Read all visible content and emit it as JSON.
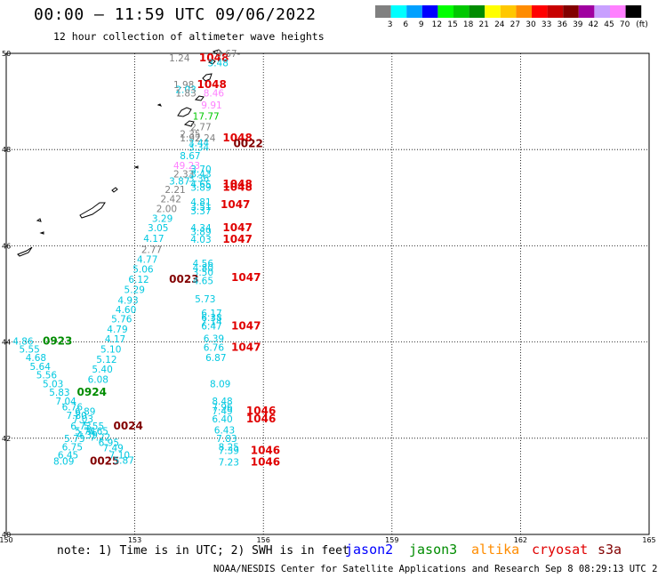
{
  "header": {
    "title": "00:00 – 11:59 UTC 09/06/2022",
    "subtitle": "12 hour collection of altimeter wave heights"
  },
  "legend": {
    "unit_label": "(ft)",
    "items": [
      {
        "label": "3",
        "color": "#808080"
      },
      {
        "label": "6",
        "color": "#00ffff"
      },
      {
        "label": "9",
        "color": "#00a0ff"
      },
      {
        "label": "12",
        "color": "#0000ff"
      },
      {
        "label": "15",
        "color": "#00ff00"
      },
      {
        "label": "18",
        "color": "#00c800"
      },
      {
        "label": "21",
        "color": "#008c00"
      },
      {
        "label": "24",
        "color": "#ffff00"
      },
      {
        "label": "27",
        "color": "#ffc800"
      },
      {
        "label": "30",
        "color": "#ff8c00"
      },
      {
        "label": "33",
        "color": "#ff0000"
      },
      {
        "label": "36",
        "color": "#c80000"
      },
      {
        "label": "39",
        "color": "#820000"
      },
      {
        "label": "42",
        "color": "#a000a0"
      },
      {
        "label": "45",
        "color": "#c8a0ff"
      },
      {
        "label": "70",
        "color": "#ff80ff"
      },
      {
        "label": "",
        "color": "#000000"
      }
    ]
  },
  "map": {
    "lon_ticks": [
      "150",
      "153",
      "156",
      "159",
      "162",
      "165"
    ],
    "lat_ticks": [
      "50",
      "48",
      "46",
      "44",
      "42",
      "40"
    ],
    "lon_range": [
      150,
      165
    ],
    "lat_range": [
      40,
      50
    ],
    "grid": "dotted"
  },
  "annotations": [
    {
      "text": "1.24",
      "lon": 153.8,
      "lat": 49.83,
      "color": "#808080"
    },
    {
      "text": "1048",
      "lon": 154.5,
      "lat": 49.83,
      "color": "#e00000"
    },
    {
      "text": "9.67-",
      "lon": 154.9,
      "lat": 49.93,
      "color": "#808080"
    },
    {
      "text": "3.48",
      "lon": 154.7,
      "lat": 49.73,
      "color": "#00c8e0"
    },
    {
      "text": "1.98",
      "lon": 153.9,
      "lat": 49.28,
      "color": "#808080"
    },
    {
      "text": "1048",
      "lon": 154.45,
      "lat": 49.28,
      "color": "#e00000"
    },
    {
      "text": "2.03",
      "lon": 153.95,
      "lat": 49.18,
      "color": "#00c8e0"
    },
    {
      "text": "1.83",
      "lon": 153.95,
      "lat": 49.1,
      "color": "#808080"
    },
    {
      "text": "8.46",
      "lon": 154.6,
      "lat": 49.1,
      "color": "#ff80ff"
    },
    {
      "text": "9.91",
      "lon": 154.55,
      "lat": 48.85,
      "color": "#ff80ff"
    },
    {
      "text": "17.77",
      "lon": 154.35,
      "lat": 48.62,
      "color": "#00c800"
    },
    {
      "text": "2.77",
      "lon": 154.3,
      "lat": 48.4,
      "color": "#808080"
    },
    {
      "text": "2.35",
      "lon": 154.05,
      "lat": 48.25,
      "color": "#808080"
    },
    {
      "text": "1.92",
      "lon": 154.05,
      "lat": 48.17,
      "color": "#808080"
    },
    {
      "text": "2.24",
      "lon": 154.4,
      "lat": 48.17,
      "color": "#808080"
    },
    {
      "text": "1048",
      "lon": 155.05,
      "lat": 48.17,
      "color": "#e00000"
    },
    {
      "text": "3.44",
      "lon": 154.25,
      "lat": 48.07,
      "color": "#00c8e0"
    },
    {
      "text": "3.34",
      "lon": 154.25,
      "lat": 47.98,
      "color": "#00c8e0"
    },
    {
      "text": "0022",
      "lon": 155.3,
      "lat": 48.05,
      "color": "#820000"
    },
    {
      "text": "8.67",
      "lon": 154.05,
      "lat": 47.8,
      "color": "#00c8e0"
    },
    {
      "text": "49.23",
      "lon": 153.9,
      "lat": 47.6,
      "color": "#ff80ff"
    },
    {
      "text": "3.70",
      "lon": 154.3,
      "lat": 47.52,
      "color": "#00c8e0"
    },
    {
      "text": "2.33",
      "lon": 153.9,
      "lat": 47.42,
      "color": "#808080"
    },
    {
      "text": "3.43",
      "lon": 154.3,
      "lat": 47.42,
      "color": "#00c8e0"
    },
    {
      "text": "3.36",
      "lon": 154.25,
      "lat": 47.33,
      "color": "#00c8e0"
    },
    {
      "text": "3.87",
      "lon": 153.8,
      "lat": 47.27,
      "color": "#00c8e0"
    },
    {
      "text": "4.65",
      "lon": 154.3,
      "lat": 47.21,
      "color": "#00c8e0"
    },
    {
      "text": "3.89",
      "lon": 154.3,
      "lat": 47.14,
      "color": "#00c8e0"
    },
    {
      "text": "1048",
      "lon": 155.05,
      "lat": 47.21,
      "color": "#e00000"
    },
    {
      "text": "1048",
      "lon": 155.05,
      "lat": 47.14,
      "color": "#e00000"
    },
    {
      "text": "2.21",
      "lon": 153.7,
      "lat": 47.1,
      "color": "#808080"
    },
    {
      "text": "2.42",
      "lon": 153.6,
      "lat": 46.9,
      "color": "#808080"
    },
    {
      "text": "4.81",
      "lon": 154.3,
      "lat": 46.84,
      "color": "#00c8e0"
    },
    {
      "text": "3.51",
      "lon": 154.3,
      "lat": 46.75,
      "color": "#00c8e0"
    },
    {
      "text": "1047",
      "lon": 155.0,
      "lat": 46.78,
      "color": "#e00000"
    },
    {
      "text": "2.00",
      "lon": 153.5,
      "lat": 46.7,
      "color": "#808080"
    },
    {
      "text": "3.37",
      "lon": 154.3,
      "lat": 46.65,
      "color": "#00c8e0"
    },
    {
      "text": "3.29",
      "lon": 153.4,
      "lat": 46.5,
      "color": "#00c8e0"
    },
    {
      "text": "3.05",
      "lon": 153.3,
      "lat": 46.3,
      "color": "#00c8e0"
    },
    {
      "text": "4.34",
      "lon": 154.3,
      "lat": 46.3,
      "color": "#00c8e0"
    },
    {
      "text": "3.89",
      "lon": 154.3,
      "lat": 46.22,
      "color": "#00c8e0"
    },
    {
      "text": "1047",
      "lon": 155.05,
      "lat": 46.3,
      "color": "#e00000"
    },
    {
      "text": "4.17",
      "lon": 153.2,
      "lat": 46.08,
      "color": "#00c8e0"
    },
    {
      "text": "4.03",
      "lon": 154.3,
      "lat": 46.06,
      "color": "#00c8e0"
    },
    {
      "text": "1047",
      "lon": 155.05,
      "lat": 46.06,
      "color": "#e00000"
    },
    {
      "text": "2.77",
      "lon": 153.15,
      "lat": 45.85,
      "color": "#808080"
    },
    {
      "text": "4.77",
      "lon": 153.05,
      "lat": 45.65,
      "color": "#00c8e0"
    },
    {
      "text": "4.56",
      "lon": 154.35,
      "lat": 45.56,
      "color": "#00c8e0"
    },
    {
      "text": "4.80",
      "lon": 154.35,
      "lat": 45.47,
      "color": "#00c8e0"
    },
    {
      "text": "5.06",
      "lon": 152.95,
      "lat": 45.44,
      "color": "#00c8e0"
    },
    {
      "text": "3.50",
      "lon": 154.35,
      "lat": 45.38,
      "color": "#00c8e0"
    },
    {
      "text": "6.12",
      "lon": 152.85,
      "lat": 45.23,
      "color": "#00c8e0"
    },
    {
      "text": "0023",
      "lon": 153.8,
      "lat": 45.23,
      "color": "#820000"
    },
    {
      "text": "4.65",
      "lon": 154.35,
      "lat": 45.2,
      "color": "#00c8e0"
    },
    {
      "text": "1047",
      "lon": 155.25,
      "lat": 45.27,
      "color": "#e00000"
    },
    {
      "text": "5.29",
      "lon": 152.75,
      "lat": 45.02,
      "color": "#00c8e0"
    },
    {
      "text": "5.73",
      "lon": 154.4,
      "lat": 44.82,
      "color": "#00c8e0"
    },
    {
      "text": "4.93",
      "lon": 152.6,
      "lat": 44.8,
      "color": "#00c8e0"
    },
    {
      "text": "4.60",
      "lon": 152.55,
      "lat": 44.6,
      "color": "#00c8e0"
    },
    {
      "text": "6.17",
      "lon": 154.55,
      "lat": 44.53,
      "color": "#00c8e0"
    },
    {
      "text": "5.76",
      "lon": 152.45,
      "lat": 44.41,
      "color": "#00c8e0"
    },
    {
      "text": "6.38",
      "lon": 154.55,
      "lat": 44.44,
      "color": "#00c8e0"
    },
    {
      "text": "7.14",
      "lon": 154.55,
      "lat": 44.35,
      "color": "#00c8e0"
    },
    {
      "text": "4.79",
      "lon": 152.35,
      "lat": 44.2,
      "color": "#00c8e0"
    },
    {
      "text": "6.47",
      "lon": 154.55,
      "lat": 44.26,
      "color": "#00c8e0"
    },
    {
      "text": "1047",
      "lon": 155.25,
      "lat": 44.26,
      "color": "#e00000"
    },
    {
      "text": "4.17",
      "lon": 152.3,
      "lat": 43.99,
      "color": "#00c8e0"
    },
    {
      "text": "6.39",
      "lon": 154.6,
      "lat": 44.0,
      "color": "#00c8e0"
    },
    {
      "text": "4.86",
      "lon": 150.15,
      "lat": 43.95,
      "color": "#00c8e0"
    },
    {
      "text": "0923",
      "lon": 150.85,
      "lat": 43.95,
      "color": "#008c00"
    },
    {
      "text": "5.55",
      "lon": 150.3,
      "lat": 43.78,
      "color": "#00c8e0"
    },
    {
      "text": "5.10",
      "lon": 152.2,
      "lat": 43.78,
      "color": "#00c8e0"
    },
    {
      "text": "6.76",
      "lon": 154.6,
      "lat": 43.82,
      "color": "#00c8e0"
    },
    {
      "text": "1047",
      "lon": 155.25,
      "lat": 43.82,
      "color": "#e00000"
    },
    {
      "text": "4.68",
      "lon": 150.45,
      "lat": 43.6,
      "color": "#00c8e0"
    },
    {
      "text": "5.12",
      "lon": 152.1,
      "lat": 43.57,
      "color": "#00c8e0"
    },
    {
      "text": "6.87",
      "lon": 154.65,
      "lat": 43.6,
      "color": "#00c8e0"
    },
    {
      "text": "5.64",
      "lon": 150.55,
      "lat": 43.42,
      "color": "#00c8e0"
    },
    {
      "text": "5.40",
      "lon": 152.0,
      "lat": 43.36,
      "color": "#00c8e0"
    },
    {
      "text": "5.56",
      "lon": 150.7,
      "lat": 43.24,
      "color": "#00c8e0"
    },
    {
      "text": "6.08",
      "lon": 151.9,
      "lat": 43.15,
      "color": "#00c8e0"
    },
    {
      "text": "5.03",
      "lon": 150.85,
      "lat": 43.06,
      "color": "#00c8e0"
    },
    {
      "text": "8.09",
      "lon": 154.75,
      "lat": 43.06,
      "color": "#00c8e0"
    },
    {
      "text": "5.83",
      "lon": 151.0,
      "lat": 42.88,
      "color": "#00c8e0"
    },
    {
      "text": "0924",
      "lon": 151.65,
      "lat": 42.88,
      "color": "#008c00"
    },
    {
      "text": "7.04",
      "lon": 151.15,
      "lat": 42.7,
      "color": "#00c8e0"
    },
    {
      "text": "8.48",
      "lon": 154.8,
      "lat": 42.7,
      "color": "#00c8e0"
    },
    {
      "text": "6.76",
      "lon": 151.3,
      "lat": 42.58,
      "color": "#00c8e0"
    },
    {
      "text": "7.96",
      "lon": 154.8,
      "lat": 42.58,
      "color": "#00c8e0"
    },
    {
      "text": "6.89",
      "lon": 151.6,
      "lat": 42.49,
      "color": "#00c8e0"
    },
    {
      "text": "7.49",
      "lon": 154.8,
      "lat": 42.5,
      "color": "#00c8e0"
    },
    {
      "text": "1046",
      "lon": 155.6,
      "lat": 42.5,
      "color": "#e00000"
    },
    {
      "text": "7.80",
      "lon": 151.4,
      "lat": 42.4,
      "color": "#00c8e0"
    },
    {
      "text": "7.03",
      "lon": 151.55,
      "lat": 42.33,
      "color": "#00c8e0"
    },
    {
      "text": "6.40",
      "lon": 154.8,
      "lat": 42.33,
      "color": "#00c8e0"
    },
    {
      "text": "1046",
      "lon": 155.6,
      "lat": 42.33,
      "color": "#e00000"
    },
    {
      "text": "6.73",
      "lon": 151.5,
      "lat": 42.18,
      "color": "#00c8e0"
    },
    {
      "text": "5.55",
      "lon": 151.8,
      "lat": 42.18,
      "color": "#00c8e0"
    },
    {
      "text": "0024",
      "lon": 152.5,
      "lat": 42.18,
      "color": "#820000"
    },
    {
      "text": "6.43",
      "lon": 154.85,
      "lat": 42.1,
      "color": "#00c8e0"
    },
    {
      "text": "5.74",
      "lon": 151.6,
      "lat": 42.08,
      "color": "#00c8e0"
    },
    {
      "text": "6.65",
      "lon": 151.9,
      "lat": 42.08,
      "color": "#00c8e0"
    },
    {
      "text": "4.39",
      "lon": 151.65,
      "lat": 42.0,
      "color": "#00c8e0"
    },
    {
      "text": "7.22",
      "lon": 151.95,
      "lat": 41.95,
      "color": "#00c8e0"
    },
    {
      "text": "5.73",
      "lon": 151.35,
      "lat": 41.92,
      "color": "#00c8e0"
    },
    {
      "text": "7.83",
      "lon": 154.9,
      "lat": 41.92,
      "color": "#00c8e0"
    },
    {
      "text": "6.95",
      "lon": 152.15,
      "lat": 41.84,
      "color": "#00c8e0"
    },
    {
      "text": "6.75",
      "lon": 151.3,
      "lat": 41.75,
      "color": "#00c8e0"
    },
    {
      "text": "7.49",
      "lon": 152.25,
      "lat": 41.73,
      "color": "#00c8e0"
    },
    {
      "text": "8.25",
      "lon": 154.95,
      "lat": 41.75,
      "color": "#00c8e0"
    },
    {
      "text": "7.39",
      "lon": 154.95,
      "lat": 41.67,
      "color": "#00c8e0"
    },
    {
      "text": "1046",
      "lon": 155.7,
      "lat": 41.67,
      "color": "#e00000"
    },
    {
      "text": "6.45",
      "lon": 151.2,
      "lat": 41.58,
      "color": "#00c8e0"
    },
    {
      "text": "7.10",
      "lon": 152.4,
      "lat": 41.58,
      "color": "#00c8e0"
    },
    {
      "text": "8.09",
      "lon": 151.1,
      "lat": 41.45,
      "color": "#00c8e0"
    },
    {
      "text": "0025",
      "lon": 151.95,
      "lat": 41.45,
      "color": "#820000"
    },
    {
      "text": "5.87",
      "lon": 152.5,
      "lat": 41.47,
      "color": "#00c8e0"
    },
    {
      "text": "7.23",
      "lon": 154.95,
      "lat": 41.43,
      "color": "#00c8e0"
    },
    {
      "text": "1046",
      "lon": 155.7,
      "lat": 41.43,
      "color": "#e00000"
    }
  ],
  "footer": {
    "note": "note: 1) Time is in UTC; 2) SWH is in feet",
    "satellites": [
      {
        "name": "jason2",
        "color": "#0000ff"
      },
      {
        "name": "jason3",
        "color": "#008c00"
      },
      {
        "name": "altika",
        "color": "#ff8c00"
      },
      {
        "name": "cryosat",
        "color": "#e00000"
      },
      {
        "name": "s3a",
        "color": "#820000"
      }
    ],
    "credit": "NOAA/NESDIS Center for Satellite Applications and Research   Sep  8 08:29:13 UTC 2022"
  }
}
